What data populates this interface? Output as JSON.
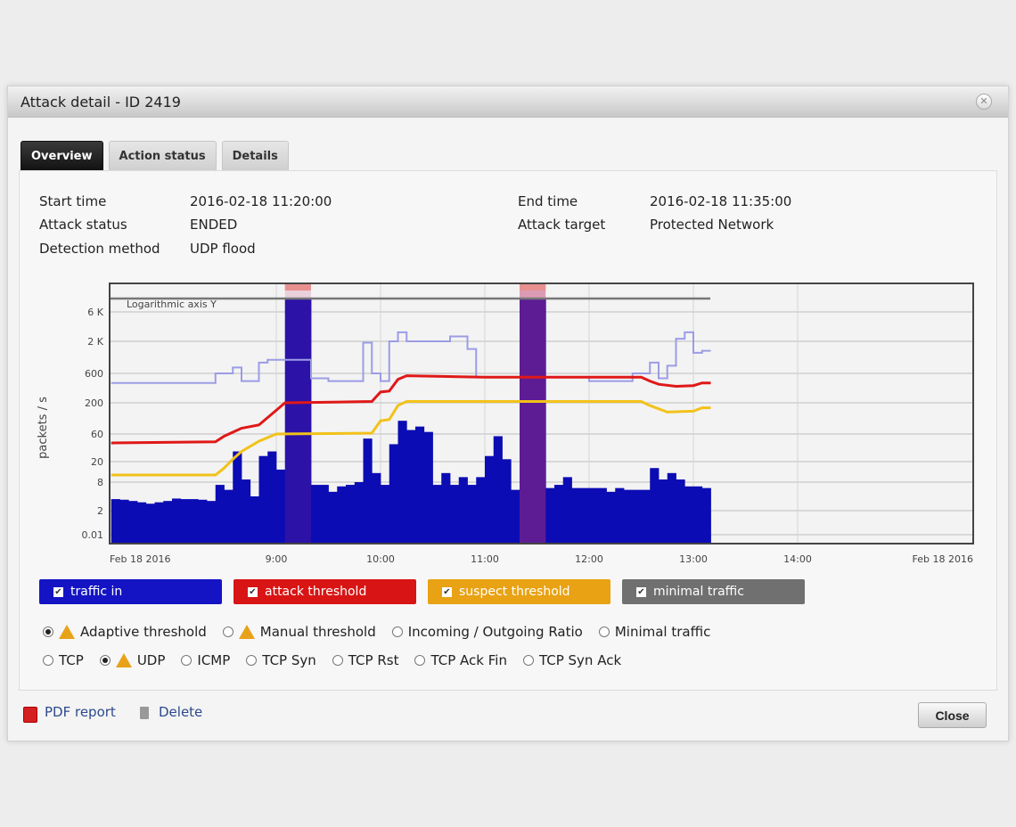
{
  "dialog": {
    "title": "Attack detail - ID 2419",
    "close_icon": "close-circle-icon"
  },
  "tabs": [
    {
      "label": "Overview",
      "active": true
    },
    {
      "label": "Action status"
    },
    {
      "label": "Details"
    }
  ],
  "info": {
    "start_time_label": "Start time",
    "start_time": "2016-02-18 11:20:00",
    "attack_status_label": "Attack status",
    "attack_status": "ENDED",
    "detection_method_label": "Detection method",
    "detection_method": "UDP flood",
    "end_time_label": "End time",
    "end_time": "2016-02-18 11:35:00",
    "attack_target_label": "Attack target",
    "attack_target": "Protected Network"
  },
  "chart_data": {
    "type": "bar+line",
    "note_label": "Logarithmic axis Y",
    "ylabel": "packets / s",
    "yscale": "log",
    "y_ticks": [
      "0.01",
      "2",
      "8",
      "20",
      "60",
      "200",
      "600",
      "2 K",
      "6 K"
    ],
    "y_tick_values": [
      0.01,
      2,
      8,
      20,
      60,
      200,
      600,
      2000,
      6000
    ],
    "x_ticks": [
      "Feb 18 2016",
      "9:00",
      "10:00",
      "11:00",
      "12:00",
      "13:00",
      "14:00",
      "Feb 18 2016"
    ],
    "x_tick_times": [
      "07:24",
      "09:00",
      "10:00",
      "11:00",
      "12:00",
      "13:00",
      "14:00",
      "15:41"
    ],
    "grid": true,
    "attack_periods": [
      {
        "start": "09:05",
        "end": "09:20"
      },
      {
        "start": "11:20",
        "end": "11:35"
      }
    ],
    "traffic_in": [
      [
        "07:25",
        3.5
      ],
      [
        "07:30",
        3.4
      ],
      [
        "07:35",
        3.2
      ],
      [
        "07:40",
        3.0
      ],
      [
        "07:45",
        2.8
      ],
      [
        "07:50",
        3.0
      ],
      [
        "07:55",
        3.2
      ],
      [
        "08:00",
        3.6
      ],
      [
        "08:05",
        3.5
      ],
      [
        "08:10",
        3.5
      ],
      [
        "08:15",
        3.4
      ],
      [
        "08:20",
        3.2
      ],
      [
        "08:25",
        7
      ],
      [
        "08:30",
        5.5
      ],
      [
        "08:35",
        30
      ],
      [
        "08:40",
        9
      ],
      [
        "08:45",
        4
      ],
      [
        "08:50",
        25
      ],
      [
        "08:55",
        30
      ],
      [
        "09:00",
        14
      ],
      [
        "09:05",
        10000
      ],
      [
        "09:10",
        10000
      ],
      [
        "09:15",
        10000
      ],
      [
        "09:20",
        7
      ],
      [
        "09:25",
        7
      ],
      [
        "09:30",
        5
      ],
      [
        "09:35",
        6.5
      ],
      [
        "09:40",
        7
      ],
      [
        "09:45",
        8
      ],
      [
        "09:50",
        50
      ],
      [
        "09:55",
        12
      ],
      [
        "10:00",
        7
      ],
      [
        "10:05",
        40
      ],
      [
        "10:10",
        100
      ],
      [
        "10:15",
        70
      ],
      [
        "10:20",
        80
      ],
      [
        "10:25",
        65
      ],
      [
        "10:30",
        7
      ],
      [
        "10:35",
        12
      ],
      [
        "10:40",
        7
      ],
      [
        "10:45",
        10
      ],
      [
        "10:50",
        7
      ],
      [
        "10:55",
        10
      ],
      [
        "11:00",
        25
      ],
      [
        "11:05",
        55
      ],
      [
        "11:10",
        22
      ],
      [
        "11:15",
        5.5
      ],
      [
        "11:20",
        10000
      ],
      [
        "11:25",
        10000
      ],
      [
        "11:30",
        10000
      ],
      [
        "11:35",
        6
      ],
      [
        "11:40",
        7
      ],
      [
        "11:45",
        10
      ],
      [
        "11:50",
        6
      ],
      [
        "11:55",
        6
      ],
      [
        "12:00",
        6
      ],
      [
        "12:05",
        6
      ],
      [
        "12:10",
        5
      ],
      [
        "12:15",
        6
      ],
      [
        "12:20",
        5.5
      ],
      [
        "12:25",
        5.5
      ],
      [
        "12:30",
        5.5
      ],
      [
        "12:35",
        15
      ],
      [
        "12:40",
        9
      ],
      [
        "12:45",
        12
      ],
      [
        "12:50",
        9
      ],
      [
        "12:55",
        6.5
      ],
      [
        "13:00",
        6.5
      ],
      [
        "13:05",
        6
      ]
    ],
    "attack_threshold": [
      [
        "07:25",
        42
      ],
      [
        "08:25",
        44
      ],
      [
        "08:30",
        55
      ],
      [
        "08:40",
        75
      ],
      [
        "08:50",
        85
      ],
      [
        "09:00",
        150
      ],
      [
        "09:05",
        200
      ],
      [
        "09:55",
        210
      ],
      [
        "10:00",
        300
      ],
      [
        "10:05",
        310
      ],
      [
        "10:10",
        480
      ],
      [
        "10:15",
        550
      ],
      [
        "11:00",
        520
      ],
      [
        "12:30",
        520
      ],
      [
        "12:35",
        450
      ],
      [
        "12:40",
        400
      ],
      [
        "12:50",
        370
      ],
      [
        "13:00",
        380
      ],
      [
        "13:05",
        420
      ],
      [
        "13:10",
        420
      ]
    ],
    "suspect_threshold": [
      [
        "07:25",
        11
      ],
      [
        "08:25",
        11
      ],
      [
        "08:30",
        15
      ],
      [
        "08:35",
        22
      ],
      [
        "08:40",
        30
      ],
      [
        "08:50",
        45
      ],
      [
        "09:00",
        60
      ],
      [
        "09:55",
        62
      ],
      [
        "10:00",
        100
      ],
      [
        "10:05",
        105
      ],
      [
        "10:10",
        180
      ],
      [
        "10:15",
        210
      ],
      [
        "12:30",
        210
      ],
      [
        "12:35",
        180
      ],
      [
        "12:45",
        140
      ],
      [
        "13:00",
        145
      ],
      [
        "13:05",
        165
      ],
      [
        "13:10",
        165
      ]
    ],
    "minimal_traffic": [
      [
        "07:25",
        420
      ],
      [
        "08:25",
        600
      ],
      [
        "08:35",
        750
      ],
      [
        "08:40",
        450
      ],
      [
        "08:50",
        900
      ],
      [
        "08:55",
        1000
      ],
      [
        "09:20",
        500
      ],
      [
        "09:30",
        450
      ],
      [
        "09:50",
        1900
      ],
      [
        "09:55",
        600
      ],
      [
        "10:00",
        450
      ],
      [
        "10:05",
        2000
      ],
      [
        "10:10",
        2800
      ],
      [
        "10:15",
        2000
      ],
      [
        "10:40",
        2400
      ],
      [
        "10:45",
        2400
      ],
      [
        "10:50",
        1500
      ],
      [
        "10:55",
        520
      ],
      [
        "12:00",
        450
      ],
      [
        "12:25",
        600
      ],
      [
        "12:35",
        900
      ],
      [
        "12:40",
        500
      ],
      [
        "12:45",
        800
      ],
      [
        "12:50",
        2200
      ],
      [
        "12:55",
        2800
      ],
      [
        "13:00",
        1300
      ],
      [
        "13:05",
        1400
      ],
      [
        "13:10",
        1400
      ]
    ],
    "colors": {
      "traffic_in": "#0c0cb4",
      "attack_threshold": "#e01818",
      "suspect_threshold": "#f2c21a",
      "minimal_traffic": "#9c9ce6",
      "attack_highlight": "#c0306a"
    }
  },
  "legend": [
    {
      "label": "traffic in",
      "checked": true,
      "color": "#1414c4"
    },
    {
      "label": "attack threshold",
      "checked": true,
      "color": "#d81414"
    },
    {
      "label": "suspect threshold",
      "checked": true,
      "color": "#e8a214"
    },
    {
      "label": "minimal traffic",
      "checked": true,
      "color": "#707070"
    }
  ],
  "threshold_options": [
    {
      "label": "Adaptive threshold",
      "selected": true,
      "warning": true
    },
    {
      "label": "Manual threshold",
      "selected": false,
      "warning": true
    },
    {
      "label": "Incoming / Outgoing Ratio",
      "selected": false
    },
    {
      "label": "Minimal traffic",
      "selected": false
    }
  ],
  "protocol_options": [
    {
      "label": "TCP"
    },
    {
      "label": "UDP",
      "selected": true,
      "warning": true
    },
    {
      "label": "ICMP"
    },
    {
      "label": "TCP Syn"
    },
    {
      "label": "TCP Rst"
    },
    {
      "label": "TCP Ack Fin"
    },
    {
      "label": "TCP Syn Ack"
    }
  ],
  "footer": {
    "pdf_label": "PDF report",
    "delete_label": "Delete",
    "close_label": "Close"
  }
}
